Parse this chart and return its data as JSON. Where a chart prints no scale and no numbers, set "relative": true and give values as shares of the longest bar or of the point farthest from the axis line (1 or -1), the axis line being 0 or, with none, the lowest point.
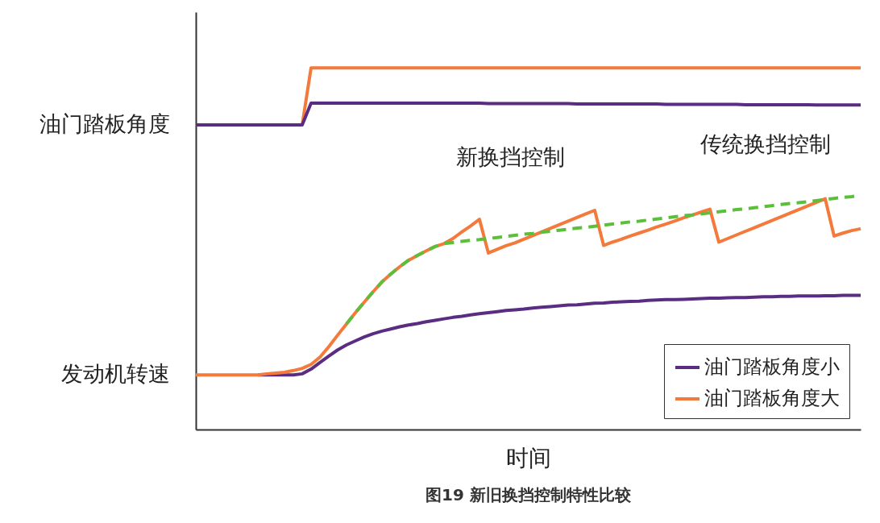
{
  "chart_data": {
    "type": "line",
    "title": "图19 新旧换挡控制特性比较",
    "xlabel": "时间",
    "relative": true,
    "tick_labels": false,
    "legend": "bottom right",
    "categories": [
      null,
      null,
      null,
      null,
      null,
      null,
      null,
      null,
      null,
      null,
      null,
      null,
      null,
      null,
      null,
      null,
      null,
      null,
      null,
      null,
      null,
      null,
      null,
      null,
      null,
      null,
      null,
      null,
      null,
      null,
      null,
      null,
      null,
      null,
      null,
      null,
      null,
      null,
      null,
      null,
      null,
      null,
      null,
      null,
      null,
      null,
      null,
      null,
      null,
      null,
      null,
      null,
      null,
      null,
      null,
      null,
      null,
      null,
      null,
      null,
      null,
      null,
      null,
      null,
      null,
      null,
      null,
      null,
      null,
      null,
      null,
      null,
      null,
      null,
      null,
      null
    ],
    "series": [
      {
        "color": "#f47a3c",
        "values": [
          null,
          null,
          null,
          null,
          null,
          null,
          null,
          null,
          null,
          null,
          null,
          null,
          0.842,
          1,
          1,
          1,
          1,
          1,
          1,
          1,
          1,
          1,
          1,
          1,
          1,
          1,
          1,
          1,
          1,
          1,
          1,
          1,
          1,
          1,
          1,
          1,
          1,
          1,
          1,
          1,
          1,
          1,
          1,
          1,
          1,
          1,
          1,
          1,
          1,
          1,
          1,
          1,
          1,
          1,
          1,
          1,
          1,
          1,
          1,
          1,
          1,
          1,
          1,
          1,
          1,
          1,
          1,
          1,
          1,
          1,
          1,
          1,
          1,
          1,
          1,
          1
        ]
      },
      {
        "color": "#5a2d82",
        "values": [
          0.842,
          0.842,
          0.842,
          0.842,
          0.842,
          0.842,
          0.842,
          0.842,
          0.842,
          0.842,
          0.842,
          0.842,
          0.842,
          0.902,
          0.902,
          0.902,
          0.902,
          0.902,
          0.902,
          0.902,
          0.902,
          0.902,
          0.902,
          0.902,
          0.902,
          0.902,
          0.902,
          0.902,
          0.902,
          0.902,
          0.902,
          0.902,
          0.902,
          0.901,
          0.901,
          0.901,
          0.901,
          0.901,
          0.901,
          0.901,
          0.901,
          0.901,
          0.901,
          0.9,
          0.9,
          0.9,
          0.9,
          0.9,
          0.9,
          0.9,
          0.9,
          0.9,
          0.9,
          0.899,
          0.899,
          0.899,
          0.899,
          0.899,
          0.899,
          0.899,
          0.899,
          0.899,
          0.898,
          0.898,
          0.898,
          0.898,
          0.898,
          0.898,
          0.898,
          0.898,
          0.897,
          0.897,
          0.897,
          0.897,
          0.897,
          0.897
        ]
      },
      {
        "name": "油门踏板角度小",
        "color": "#5a2d82",
        "values": [
          null,
          null,
          null,
          null,
          null,
          null,
          null,
          0.151,
          0.151,
          0.151,
          0.151,
          0.151,
          0.154,
          0.167,
          0.185,
          0.203,
          0.22,
          0.234,
          0.245,
          0.256,
          0.265,
          0.272,
          0.278,
          0.284,
          0.289,
          0.293,
          0.298,
          0.302,
          0.306,
          0.31,
          0.313,
          0.317,
          0.32,
          0.323,
          0.326,
          0.329,
          0.331,
          0.333,
          0.336,
          0.338,
          0.34,
          0.342,
          0.344,
          0.345,
          0.347,
          0.349,
          0.35,
          0.352,
          0.353,
          0.354,
          0.355,
          0.357,
          0.358,
          0.359,
          0.359,
          0.36,
          0.361,
          0.362,
          0.363,
          0.363,
          0.364,
          0.365,
          0.365,
          0.366,
          0.367,
          0.367,
          0.368,
          0.368,
          0.369,
          0.369,
          0.369,
          0.37,
          0.37,
          0.371,
          0.371,
          0.371
        ]
      },
      {
        "name": "油门踏板角度大",
        "color": "#f47a3c",
        "values": [
          0.151,
          0.151,
          0.151,
          0.151,
          0.151,
          0.151,
          0.151,
          0.151,
          0.154,
          0.156,
          0.158,
          0.163,
          0.169,
          0.18,
          0.2,
          0.229,
          0.261,
          0.292,
          0.323,
          0.352,
          0.381,
          0.408,
          0.43,
          0.45,
          0.468,
          0.481,
          0.494,
          0.506,
          0.514,
          0.528,
          0.546,
          0.563,
          0.581,
          0.488,
          0.498,
          0.508,
          0.516,
          0.526,
          0.536,
          0.546,
          0.556,
          0.566,
          0.576,
          0.586,
          0.596,
          0.606,
          0.509,
          0.518,
          0.526,
          0.535,
          0.543,
          0.551,
          0.56,
          0.568,
          0.576,
          0.585,
          0.593,
          0.601,
          0.609,
          0.518,
          0.528,
          0.538,
          0.548,
          0.558,
          0.568,
          0.578,
          0.588,
          0.598,
          0.608,
          0.618,
          0.628,
          0.638,
          0.535,
          0.543,
          0.55,
          0.555
        ]
      },
      {
        "color": "#5cbf3a",
        "line_style": "dashed",
        "values": [
          null,
          null,
          null,
          null,
          null,
          null,
          null,
          null,
          null,
          null,
          null,
          null,
          null,
          null,
          null,
          null,
          null,
          0.292,
          0.323,
          0.352,
          0.381,
          0.408,
          0.43,
          0.45,
          0.468,
          0.481,
          0.494,
          0.506,
          0.514,
          0.517,
          0.52,
          0.523,
          0.525,
          0.528,
          0.531,
          0.534,
          0.537,
          0.54,
          0.542,
          0.545,
          0.548,
          0.551,
          0.554,
          0.557,
          0.559,
          0.562,
          0.565,
          0.568,
          0.571,
          0.574,
          0.576,
          0.579,
          0.582,
          0.585,
          0.588,
          0.591,
          0.593,
          0.596,
          0.599,
          0.602,
          0.605,
          0.608,
          0.61,
          0.613,
          0.616,
          0.619,
          0.622,
          0.625,
          0.627,
          0.63,
          0.633,
          0.636,
          0.639,
          0.642,
          0.644,
          0.647
        ]
      }
    ],
    "annotations": [
      "油门踏板角度",
      "发动机转速",
      "新换挡控制",
      "传统换挡控制"
    ]
  }
}
